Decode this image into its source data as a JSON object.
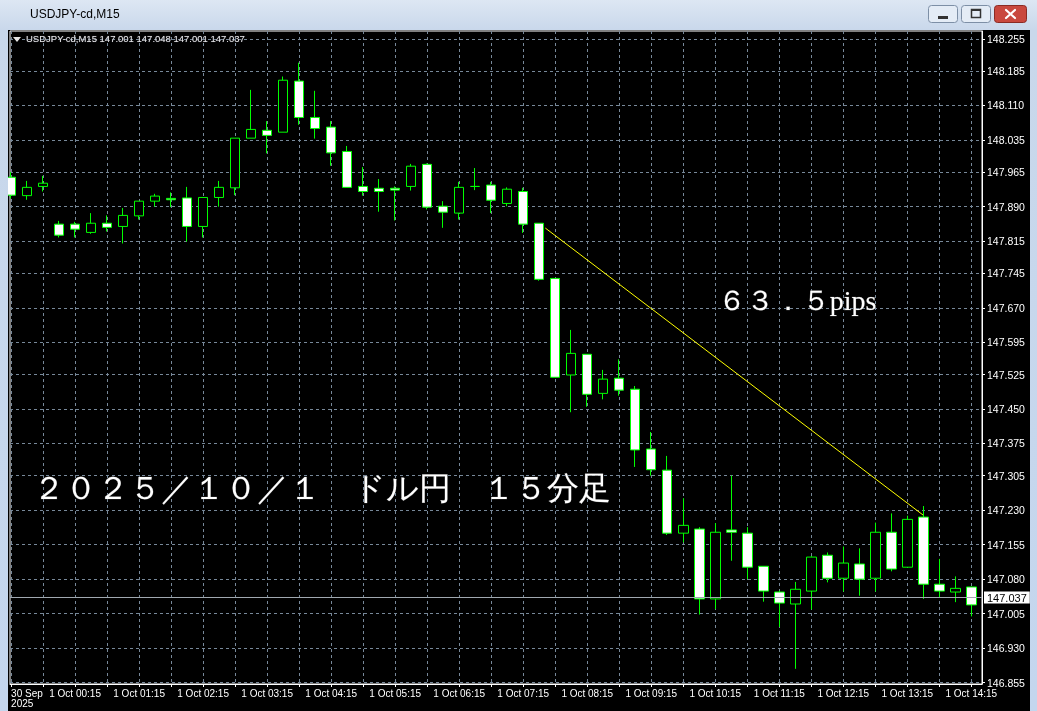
{
  "chart_data": {
    "type": "candlestick",
    "title": "USDJPY-cd,M15",
    "subtitle": "USDJPY-cd,M15 147.001 147.048 147.001 147.037",
    "annotations": [
      "２０２５／１０／１　ドル円　１５分足",
      "６３．５pips"
    ],
    "x": [
      "2025-09-30T23:15",
      "2025-09-30T23:30",
      "2025-09-30T23:45",
      "2025-10-01T00:00",
      "2025-10-01T00:15",
      "2025-10-01T00:30",
      "2025-10-01T00:45",
      "2025-10-01T01:00",
      "2025-10-01T01:15",
      "2025-10-01T01:30",
      "2025-10-01T01:45",
      "2025-10-01T02:00",
      "2025-10-01T02:15",
      "2025-10-01T02:30",
      "2025-10-01T02:45",
      "2025-10-01T03:00",
      "2025-10-01T03:15",
      "2025-10-01T03:30",
      "2025-10-01T03:45",
      "2025-10-01T04:00",
      "2025-10-01T04:15",
      "2025-10-01T04:30",
      "2025-10-01T04:45",
      "2025-10-01T05:00",
      "2025-10-01T05:15",
      "2025-10-01T05:30",
      "2025-10-01T05:45",
      "2025-10-01T06:00",
      "2025-10-01T06:15",
      "2025-10-01T06:30",
      "2025-10-01T06:45",
      "2025-10-01T07:00",
      "2025-10-01T07:15",
      "2025-10-01T07:30",
      "2025-10-01T07:45",
      "2025-10-01T08:00",
      "2025-10-01T08:15",
      "2025-10-01T08:30",
      "2025-10-01T08:45",
      "2025-10-01T09:00",
      "2025-10-01T09:15",
      "2025-10-01T09:30",
      "2025-10-01T09:45",
      "2025-10-01T10:00",
      "2025-10-01T10:15",
      "2025-10-01T10:30",
      "2025-10-01T10:45",
      "2025-10-01T11:00",
      "2025-10-01T11:15",
      "2025-10-01T11:30",
      "2025-10-01T11:45",
      "2025-10-01T12:00",
      "2025-10-01T12:15",
      "2025-10-01T12:30",
      "2025-10-01T12:45",
      "2025-10-01T13:00",
      "2025-10-01T13:15",
      "2025-10-01T13:30",
      "2025-10-01T13:45",
      "2025-10-01T14:00",
      "2025-10-01T14:15"
    ],
    "series": [
      {
        "type": "candlestick",
        "color": "#00ff00",
        "ohlc": [
          [
            147.954,
            147.965,
            147.908,
            147.915
          ],
          [
            147.914,
            147.946,
            147.905,
            147.932
          ],
          [
            147.934,
            147.957,
            147.923,
            147.941
          ],
          [
            147.852,
            147.859,
            147.823,
            147.828
          ],
          [
            147.852,
            147.857,
            147.823,
            147.841
          ],
          [
            147.834,
            147.876,
            147.831,
            147.854
          ],
          [
            147.854,
            147.871,
            147.836,
            147.845
          ],
          [
            147.847,
            147.887,
            147.81,
            147.871
          ],
          [
            147.87,
            147.902,
            147.862,
            147.902
          ],
          [
            147.902,
            147.918,
            147.89,
            147.913
          ],
          [
            147.908,
            147.921,
            147.889,
            147.905
          ],
          [
            147.909,
            147.933,
            147.814,
            147.847
          ],
          [
            147.847,
            147.91,
            147.823,
            147.91
          ],
          [
            147.91,
            147.946,
            147.89,
            147.932
          ],
          [
            147.931,
            148.039,
            147.915,
            148.039
          ],
          [
            148.039,
            148.144,
            148.039,
            148.058
          ],
          [
            148.056,
            148.076,
            148.006,
            148.045
          ],
          [
            148.052,
            148.173,
            148.052,
            148.165
          ],
          [
            148.163,
            148.203,
            148.068,
            148.084
          ],
          [
            148.084,
            148.142,
            148.038,
            148.06
          ],
          [
            148.063,
            148.076,
            147.979,
            148.007
          ],
          [
            148.01,
            148.022,
            147.932,
            147.932
          ],
          [
            147.934,
            147.976,
            147.914,
            147.923
          ],
          [
            147.93,
            147.95,
            147.879,
            147.923
          ],
          [
            147.93,
            147.934,
            147.86,
            147.926
          ],
          [
            147.934,
            147.983,
            147.925,
            147.978
          ],
          [
            147.982,
            147.984,
            147.884,
            147.889
          ],
          [
            147.891,
            147.902,
            147.844,
            147.878
          ],
          [
            147.876,
            147.944,
            147.862,
            147.932
          ],
          [
            147.934,
            147.974,
            147.926,
            147.934
          ],
          [
            147.937,
            147.944,
            147.876,
            147.904
          ],
          [
            147.897,
            147.932,
            147.891,
            147.928
          ],
          [
            147.923,
            147.931,
            147.833,
            147.852
          ],
          [
            147.854,
            147.854,
            147.729,
            147.732
          ],
          [
            147.734,
            147.734,
            147.519,
            147.519
          ],
          [
            147.524,
            147.622,
            147.443,
            147.571
          ],
          [
            147.569,
            147.569,
            147.455,
            147.482
          ],
          [
            147.484,
            147.535,
            147.471,
            147.515
          ],
          [
            147.517,
            147.558,
            147.479,
            147.491
          ],
          [
            147.493,
            147.5,
            147.324,
            147.361
          ],
          [
            147.363,
            147.4,
            147.305,
            147.318
          ],
          [
            147.317,
            147.348,
            147.176,
            147.18
          ],
          [
            147.18,
            147.256,
            147.16,
            147.197
          ],
          [
            147.189,
            147.193,
            147.003,
            147.037
          ],
          [
            147.037,
            147.202,
            147.015,
            147.182
          ],
          [
            147.187,
            147.305,
            147.12,
            147.182
          ],
          [
            147.18,
            147.193,
            147.08,
            147.106
          ],
          [
            147.108,
            147.108,
            147.031,
            147.054
          ],
          [
            147.052,
            147.055,
            146.976,
            147.028
          ],
          [
            147.026,
            147.074,
            146.885,
            147.058
          ],
          [
            147.054,
            147.13,
            147.014,
            147.128
          ],
          [
            147.132,
            147.138,
            147.073,
            147.082
          ],
          [
            147.082,
            147.151,
            147.053,
            147.115
          ],
          [
            147.113,
            147.147,
            147.044,
            147.08
          ],
          [
            147.082,
            147.203,
            147.053,
            147.182
          ],
          [
            147.182,
            147.223,
            147.097,
            147.102
          ],
          [
            147.106,
            147.218,
            147.106,
            147.21
          ],
          [
            147.215,
            147.239,
            147.037,
            147.069
          ],
          [
            147.069,
            147.124,
            147.041,
            147.054
          ],
          [
            147.052,
            147.086,
            147.03,
            147.06
          ],
          [
            147.063,
            147.063,
            146.999,
            147.024
          ]
        ]
      },
      {
        "type": "line",
        "color": "#ffff00",
        "x": [
          "2025-10-01T07:36",
          "2025-10-01T13:30"
        ],
        "values": [
          147.843,
          147.219
        ]
      }
    ],
    "marker": "none",
    "xlim": [
      "2025-09-30T23:14",
      "2025-10-01T14:25"
    ],
    "xticks": [
      {
        "value": "2025-09-30T23:15",
        "label": "30 Sep 2025"
      },
      {
        "value": "2025-09-30T23:45",
        "label": null
      },
      {
        "value": "2025-10-01T00:15",
        "label": "1 Oct 00:15"
      },
      {
        "value": "2025-10-01T00:45",
        "label": null
      },
      {
        "value": "2025-10-01T01:15",
        "label": "1 Oct 01:15"
      },
      {
        "value": "2025-10-01T01:45",
        "label": null
      },
      {
        "value": "2025-10-01T02:15",
        "label": "1 Oct 02:15"
      },
      {
        "value": "2025-10-01T02:45",
        "label": null
      },
      {
        "value": "2025-10-01T03:15",
        "label": "1 Oct 03:15"
      },
      {
        "value": "2025-10-01T03:45",
        "label": null
      },
      {
        "value": "2025-10-01T04:15",
        "label": "1 Oct 04:15"
      },
      {
        "value": "2025-10-01T04:45",
        "label": null
      },
      {
        "value": "2025-10-01T05:15",
        "label": "1 Oct 05:15"
      },
      {
        "value": "2025-10-01T05:45",
        "label": null
      },
      {
        "value": "2025-10-01T06:15",
        "label": "1 Oct 06:15"
      },
      {
        "value": "2025-10-01T06:45",
        "label": null
      },
      {
        "value": "2025-10-01T07:15",
        "label": "1 Oct 07:15"
      },
      {
        "value": "2025-10-01T07:45",
        "label": null
      },
      {
        "value": "2025-10-01T08:15",
        "label": "1 Oct 08:15"
      },
      {
        "value": "2025-10-01T08:45",
        "label": null
      },
      {
        "value": "2025-10-01T09:15",
        "label": "1 Oct 09:15"
      },
      {
        "value": "2025-10-01T09:45",
        "label": null
      },
      {
        "value": "2025-10-01T10:15",
        "label": "1 Oct 10:15"
      },
      {
        "value": "2025-10-01T10:45",
        "label": null
      },
      {
        "value": "2025-10-01T11:15",
        "label": "1 Oct 11:15"
      },
      {
        "value": "2025-10-01T11:45",
        "label": null
      },
      {
        "value": "2025-10-01T12:15",
        "label": "1 Oct 12:15"
      },
      {
        "value": "2025-10-01T12:45",
        "label": null
      },
      {
        "value": "2025-10-01T13:15",
        "label": "1 Oct 13:15"
      },
      {
        "value": "2025-10-01T13:45",
        "label": null
      },
      {
        "value": "2025-10-01T14:15",
        "label": "1 Oct 14:15"
      }
    ],
    "ylim": [
      146.852,
      148.272
    ],
    "yticks": [
      146.855,
      {
        "value": 146.93,
        "label": "146.930"
      },
      147.005,
      {
        "value": 147.08,
        "label": "147.080"
      },
      147.155,
      {
        "value": 147.23,
        "label": "147.230"
      },
      147.305,
      147.375,
      {
        "value": 147.45,
        "label": "147.450"
      },
      147.525,
      147.595,
      {
        "value": 147.67,
        "label": "147.670"
      },
      147.745,
      147.815,
      {
        "value": 147.89,
        "label": "147.890"
      },
      147.965,
      148.035,
      {
        "value": 148.11,
        "label": "148.110"
      },
      148.185,
      148.255
    ],
    "ref_lines": [
      {
        "axis": "y",
        "value": 147.037,
        "label": "147.037",
        "color": "#a0a8b0"
      }
    ],
    "grid": true
  }
}
